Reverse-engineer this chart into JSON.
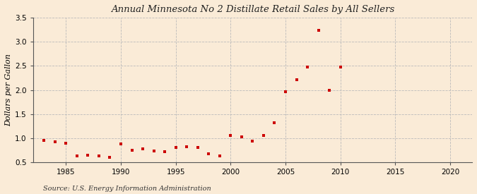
{
  "title": "Annual Minnesota No 2 Distillate Retail Sales by All Sellers",
  "ylabel": "Dollars per Gallon",
  "source": "Source: U.S. Energy Information Administration",
  "background_color": "#faebd7",
  "plot_bg_color": "#faebd7",
  "marker_color": "#cc0000",
  "xlim": [
    1982,
    2022
  ],
  "ylim": [
    0.5,
    3.5
  ],
  "yticks": [
    0.5,
    1.0,
    1.5,
    2.0,
    2.5,
    3.0,
    3.5
  ],
  "xticks": [
    1985,
    1990,
    1995,
    2000,
    2005,
    2010,
    2015,
    2020
  ],
  "grid_color": "#bbbbbb",
  "data": [
    [
      1983,
      0.95
    ],
    [
      1984,
      0.92
    ],
    [
      1985,
      0.9
    ],
    [
      1986,
      0.63
    ],
    [
      1987,
      0.65
    ],
    [
      1988,
      0.63
    ],
    [
      1989,
      0.6
    ],
    [
      1990,
      0.88
    ],
    [
      1991,
      0.75
    ],
    [
      1992,
      0.77
    ],
    [
      1993,
      0.73
    ],
    [
      1994,
      0.72
    ],
    [
      1995,
      0.8
    ],
    [
      1996,
      0.82
    ],
    [
      1997,
      0.8
    ],
    [
      1998,
      0.68
    ],
    [
      1999,
      0.63
    ],
    [
      2000,
      1.05
    ],
    [
      2001,
      1.02
    ],
    [
      2002,
      0.93
    ],
    [
      2003,
      1.05
    ],
    [
      2004,
      1.32
    ],
    [
      2005,
      1.97
    ],
    [
      2006,
      2.22
    ],
    [
      2007,
      2.48
    ],
    [
      2008,
      3.24
    ],
    [
      2009,
      1.99
    ],
    [
      2010,
      2.47
    ]
  ]
}
